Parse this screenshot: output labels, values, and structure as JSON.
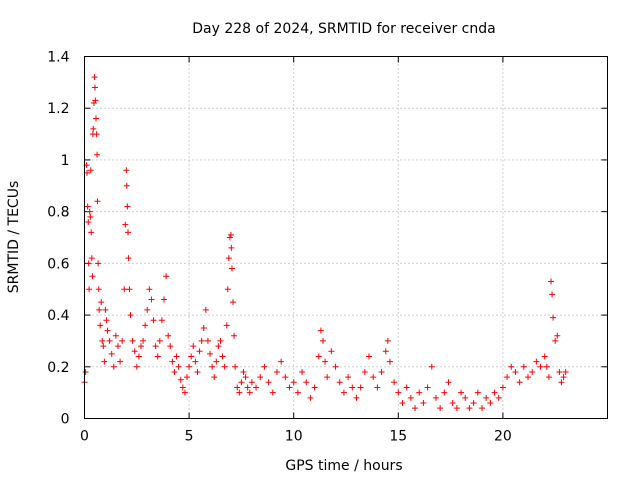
{
  "chart_data": {
    "type": "scatter",
    "title": "Day 228 of 2024, SRMTID for receiver cnda",
    "xlabel": "GPS time / hours",
    "ylabel": "SRMTID / TECUs",
    "xlim": [
      0,
      25
    ],
    "ylim": [
      0,
      1.4
    ],
    "xticks": [
      0,
      5,
      10,
      15,
      20
    ],
    "xtick_labels": [
      "0",
      "5",
      "10",
      "15",
      "20"
    ],
    "yticks": [
      0,
      0.2,
      0.4,
      0.6,
      0.8,
      1.0,
      1.2,
      1.4
    ],
    "ytick_labels": [
      "0",
      "0.2",
      "0.4",
      "0.6",
      "0.8",
      "1",
      "1.2",
      "1.4"
    ],
    "grid": true,
    "marker": "+",
    "color": "#ff0000",
    "series": [
      {
        "name": "SRMTID",
        "points": [
          [
            0.0,
            0.14
          ],
          [
            0.05,
            0.18
          ],
          [
            0.1,
            0.98
          ],
          [
            0.12,
            0.95
          ],
          [
            0.15,
            0.82
          ],
          [
            0.18,
            0.76
          ],
          [
            0.2,
            0.6
          ],
          [
            0.22,
            0.5
          ],
          [
            0.25,
            0.8
          ],
          [
            0.28,
            0.78
          ],
          [
            0.3,
            0.96
          ],
          [
            0.32,
            0.72
          ],
          [
            0.35,
            0.62
          ],
          [
            0.38,
            0.55
          ],
          [
            0.4,
            1.1
          ],
          [
            0.42,
            1.12
          ],
          [
            0.45,
            1.22
          ],
          [
            0.48,
            1.32
          ],
          [
            0.5,
            1.28
          ],
          [
            0.52,
            1.23
          ],
          [
            0.55,
            1.16
          ],
          [
            0.58,
            1.1
          ],
          [
            0.6,
            1.02
          ],
          [
            0.62,
            0.84
          ],
          [
            0.65,
            0.6
          ],
          [
            0.68,
            0.5
          ],
          [
            0.7,
            0.42
          ],
          [
            0.75,
            0.36
          ],
          [
            0.8,
            0.45
          ],
          [
            0.85,
            0.3
          ],
          [
            0.9,
            0.28
          ],
          [
            0.95,
            0.22
          ],
          [
            1.0,
            0.42
          ],
          [
            1.05,
            0.38
          ],
          [
            1.1,
            0.34
          ],
          [
            1.2,
            0.3
          ],
          [
            1.3,
            0.25
          ],
          [
            1.4,
            0.2
          ],
          [
            1.5,
            0.32
          ],
          [
            1.6,
            0.28
          ],
          [
            1.7,
            0.22
          ],
          [
            1.8,
            0.3
          ],
          [
            1.9,
            0.5
          ],
          [
            1.95,
            0.75
          ],
          [
            2.0,
            0.96
          ],
          [
            2.02,
            0.9
          ],
          [
            2.05,
            0.82
          ],
          [
            2.08,
            0.72
          ],
          [
            2.1,
            0.62
          ],
          [
            2.15,
            0.5
          ],
          [
            2.2,
            0.4
          ],
          [
            2.3,
            0.3
          ],
          [
            2.4,
            0.26
          ],
          [
            2.5,
            0.2
          ],
          [
            2.6,
            0.24
          ],
          [
            2.7,
            0.28
          ],
          [
            2.8,
            0.3
          ],
          [
            2.9,
            0.36
          ],
          [
            3.0,
            0.42
          ],
          [
            3.1,
            0.5
          ],
          [
            3.2,
            0.46
          ],
          [
            3.3,
            0.38
          ],
          [
            3.4,
            0.28
          ],
          [
            3.5,
            0.24
          ],
          [
            3.6,
            0.3
          ],
          [
            3.7,
            0.38
          ],
          [
            3.8,
            0.46
          ],
          [
            3.9,
            0.55
          ],
          [
            4.0,
            0.32
          ],
          [
            4.1,
            0.28
          ],
          [
            4.2,
            0.22
          ],
          [
            4.3,
            0.18
          ],
          [
            4.4,
            0.24
          ],
          [
            4.5,
            0.2
          ],
          [
            4.6,
            0.15
          ],
          [
            4.7,
            0.12
          ],
          [
            4.8,
            0.1
          ],
          [
            4.9,
            0.16
          ],
          [
            5.0,
            0.2
          ],
          [
            5.1,
            0.24
          ],
          [
            5.2,
            0.28
          ],
          [
            5.3,
            0.22
          ],
          [
            5.4,
            0.18
          ],
          [
            5.5,
            0.26
          ],
          [
            5.6,
            0.3
          ],
          [
            5.7,
            0.35
          ],
          [
            5.8,
            0.42
          ],
          [
            5.9,
            0.3
          ],
          [
            6.0,
            0.25
          ],
          [
            6.1,
            0.2
          ],
          [
            6.2,
            0.16
          ],
          [
            6.3,
            0.22
          ],
          [
            6.4,
            0.28
          ],
          [
            6.5,
            0.3
          ],
          [
            6.6,
            0.24
          ],
          [
            6.7,
            0.2
          ],
          [
            6.8,
            0.36
          ],
          [
            6.85,
            0.5
          ],
          [
            6.9,
            0.62
          ],
          [
            6.95,
            0.7
          ],
          [
            7.0,
            0.71
          ],
          [
            7.02,
            0.66
          ],
          [
            7.05,
            0.58
          ],
          [
            7.1,
            0.45
          ],
          [
            7.15,
            0.32
          ],
          [
            7.2,
            0.2
          ],
          [
            7.3,
            0.12
          ],
          [
            7.4,
            0.1
          ],
          [
            7.5,
            0.14
          ],
          [
            7.6,
            0.18
          ],
          [
            7.7,
            0.16
          ],
          [
            7.8,
            0.12
          ],
          [
            7.9,
            0.1
          ],
          [
            8.0,
            0.14
          ],
          [
            8.2,
            0.12
          ],
          [
            8.4,
            0.16
          ],
          [
            8.6,
            0.2
          ],
          [
            8.8,
            0.14
          ],
          [
            9.0,
            0.1
          ],
          [
            9.2,
            0.18
          ],
          [
            9.4,
            0.22
          ],
          [
            9.6,
            0.16
          ],
          [
            9.8,
            0.12
          ],
          [
            10.0,
            0.14
          ],
          [
            10.2,
            0.1
          ],
          [
            10.4,
            0.18
          ],
          [
            10.6,
            0.14
          ],
          [
            10.8,
            0.08
          ],
          [
            11.0,
            0.12
          ],
          [
            11.2,
            0.24
          ],
          [
            11.3,
            0.34
          ],
          [
            11.4,
            0.3
          ],
          [
            11.5,
            0.22
          ],
          [
            11.6,
            0.16
          ],
          [
            11.8,
            0.26
          ],
          [
            12.0,
            0.2
          ],
          [
            12.2,
            0.14
          ],
          [
            12.4,
            0.1
          ],
          [
            12.6,
            0.16
          ],
          [
            12.8,
            0.12
          ],
          [
            13.0,
            0.08
          ],
          [
            13.2,
            0.12
          ],
          [
            13.4,
            0.18
          ],
          [
            13.6,
            0.24
          ],
          [
            13.8,
            0.16
          ],
          [
            14.0,
            0.12
          ],
          [
            14.2,
            0.18
          ],
          [
            14.4,
            0.26
          ],
          [
            14.5,
            0.3
          ],
          [
            14.6,
            0.22
          ],
          [
            14.8,
            0.14
          ],
          [
            15.0,
            0.1
          ],
          [
            15.2,
            0.06
          ],
          [
            15.4,
            0.12
          ],
          [
            15.6,
            0.08
          ],
          [
            15.8,
            0.04
          ],
          [
            16.0,
            0.1
          ],
          [
            16.2,
            0.06
          ],
          [
            16.4,
            0.12
          ],
          [
            16.6,
            0.2
          ],
          [
            16.8,
            0.08
          ],
          [
            17.0,
            0.04
          ],
          [
            17.2,
            0.1
          ],
          [
            17.4,
            0.14
          ],
          [
            17.6,
            0.06
          ],
          [
            17.8,
            0.04
          ],
          [
            18.0,
            0.1
          ],
          [
            18.2,
            0.08
          ],
          [
            18.4,
            0.04
          ],
          [
            18.6,
            0.06
          ],
          [
            18.8,
            0.1
          ],
          [
            19.0,
            0.04
          ],
          [
            19.2,
            0.08
          ],
          [
            19.4,
            0.06
          ],
          [
            19.6,
            0.1
          ],
          [
            19.8,
            0.08
          ],
          [
            20.0,
            0.12
          ],
          [
            20.2,
            0.16
          ],
          [
            20.4,
            0.2
          ],
          [
            20.6,
            0.18
          ],
          [
            20.8,
            0.14
          ],
          [
            21.0,
            0.2
          ],
          [
            21.2,
            0.16
          ],
          [
            21.4,
            0.18
          ],
          [
            21.6,
            0.22
          ],
          [
            21.8,
            0.2
          ],
          [
            22.0,
            0.24
          ],
          [
            22.1,
            0.2
          ],
          [
            22.2,
            0.16
          ],
          [
            22.3,
            0.53
          ],
          [
            22.35,
            0.48
          ],
          [
            22.4,
            0.39
          ],
          [
            22.5,
            0.3
          ],
          [
            22.6,
            0.32
          ],
          [
            22.7,
            0.18
          ],
          [
            22.8,
            0.14
          ],
          [
            22.9,
            0.16
          ],
          [
            23.0,
            0.18
          ]
        ]
      }
    ]
  }
}
